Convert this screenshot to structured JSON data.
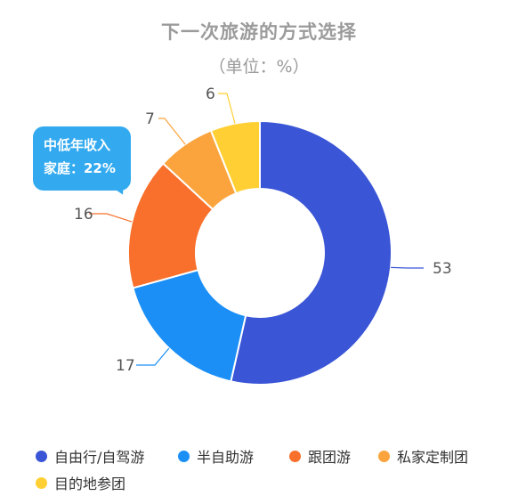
{
  "chart_data": {
    "type": "pie",
    "title": "下一次旅游的方式选择",
    "subtitle": "（单位：%）",
    "series": [
      {
        "name": "自由行/自驾游",
        "value": 53,
        "color": "#3a55d6"
      },
      {
        "name": "半自助游",
        "value": 17,
        "color": "#1b8ff6"
      },
      {
        "name": "跟团游",
        "value": 16,
        "color": "#f8702b"
      },
      {
        "name": "私家定制团",
        "value": 7,
        "color": "#fba43d"
      },
      {
        "name": "目的地参团",
        "value": 6,
        "color": "#ffcf33"
      }
    ],
    "legend_placement": "bottom",
    "donut": true
  },
  "callout": {
    "line1": "中低年收入",
    "line2": "家庭：22%"
  }
}
